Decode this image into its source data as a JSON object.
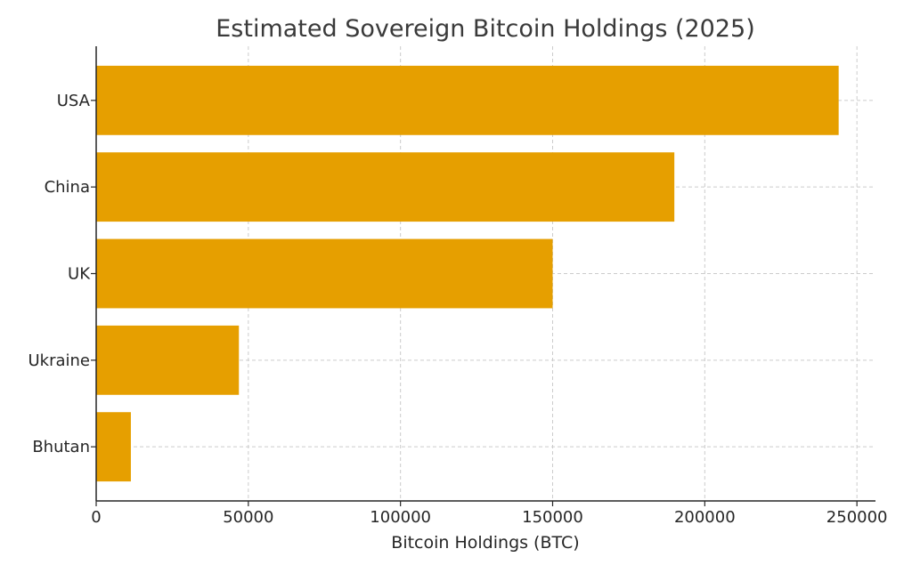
{
  "chart_data": {
    "type": "bar",
    "orientation": "horizontal",
    "title": "Estimated Sovereign Bitcoin Holdings (2025)",
    "xlabel": "Bitcoin Holdings (BTC)",
    "ylabel": "",
    "categories": [
      "USA",
      "China",
      "UK",
      "Ukraine",
      "Bhutan"
    ],
    "values": [
      244000,
      190000,
      150000,
      46900,
      11400
    ],
    "xlim": [
      0,
      256100
    ],
    "xticks": [
      0,
      50000,
      100000,
      150000,
      200000,
      250000
    ],
    "xtick_labels": [
      "0",
      "50000",
      "100000",
      "150000",
      "200000",
      "250000"
    ],
    "grid": true,
    "bar_color": "#E69F00"
  }
}
